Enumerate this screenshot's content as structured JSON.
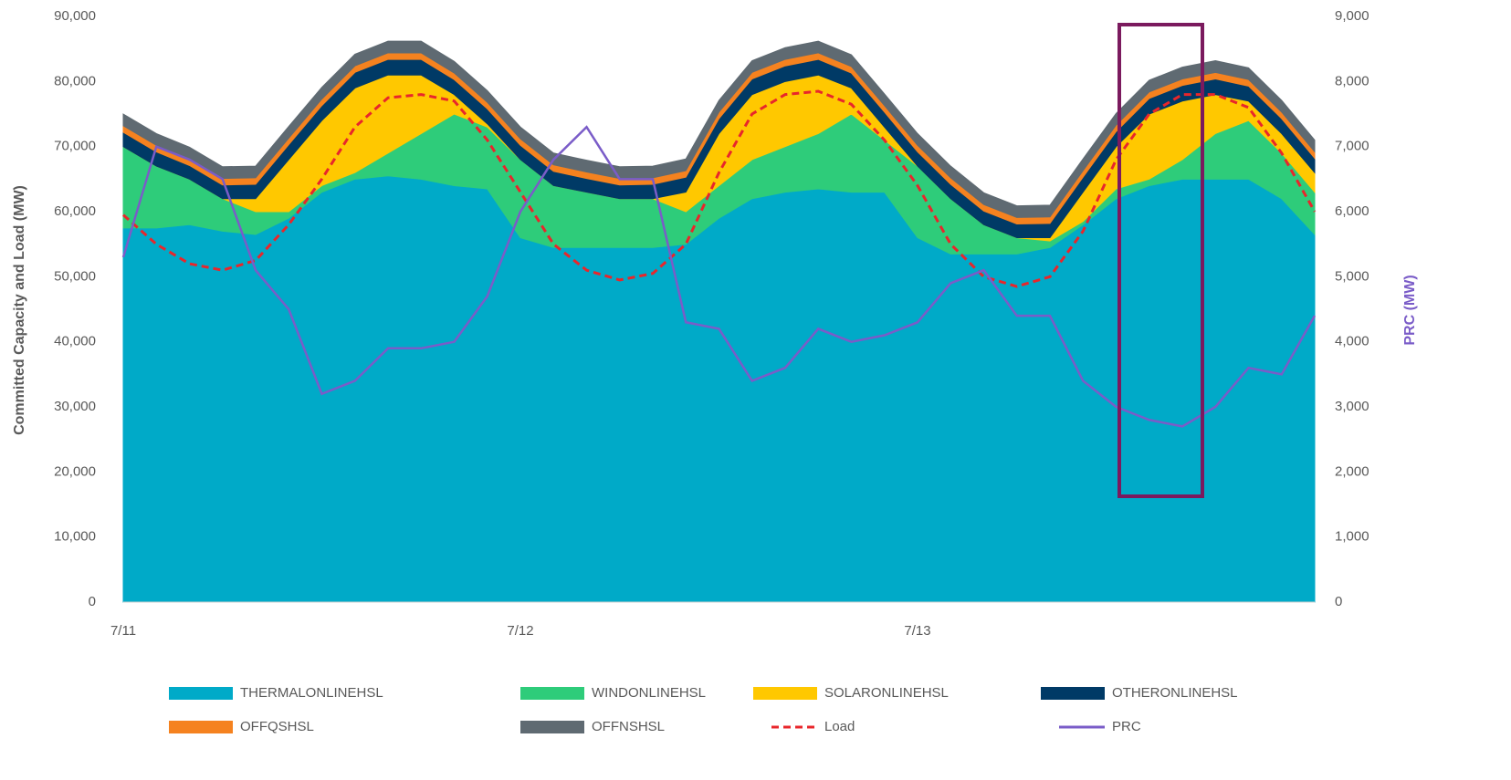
{
  "chart_data": {
    "type": "stacked-area",
    "y_label": "Committed Capacity and Load (MW)",
    "y2_label": "PRC (MW)",
    "categories": [
      "7/11",
      null,
      null,
      null,
      null,
      null,
      null,
      null,
      null,
      null,
      null,
      null,
      "7/12",
      null,
      null,
      null,
      null,
      null,
      null,
      null,
      null,
      null,
      null,
      null,
      "7/13",
      null,
      null,
      null,
      null,
      null,
      null,
      null,
      null,
      null,
      null,
      null,
      null
    ],
    "ylim": [
      0,
      90000
    ],
    "yticks": [
      0,
      {
        "value": 10000,
        "label": "10,000"
      },
      {
        "value": 20000,
        "label": "20,000"
      },
      {
        "value": 30000,
        "label": "30,000"
      },
      {
        "value": 40000,
        "label": "40,000"
      },
      {
        "value": 50000,
        "label": "50,000"
      },
      {
        "value": 60000,
        "label": "60,000"
      },
      {
        "value": 70000,
        "label": "70,000"
      },
      {
        "value": 80000,
        "label": "80,000"
      },
      {
        "value": 90000,
        "label": "90,000"
      }
    ],
    "y2lim": [
      0,
      9000
    ],
    "y2ticks": [
      0,
      {
        "value": 1000,
        "label": "1,000"
      },
      {
        "value": 2000,
        "label": "2,000"
      },
      {
        "value": 3000,
        "label": "3,000"
      },
      {
        "value": 4000,
        "label": "4,000"
      },
      {
        "value": 5000,
        "label": "5,000"
      },
      {
        "value": 6000,
        "label": "6,000"
      },
      {
        "value": 7000,
        "label": "7,000"
      },
      {
        "value": 8000,
        "label": "8,000"
      },
      {
        "value": 9000,
        "label": "9,000"
      }
    ],
    "series": [
      {
        "name": "THERMALONLINEHSL",
        "kind": "area",
        "color": "#00aac8",
        "values": [
          57500,
          57500,
          58000,
          57000,
          56500,
          59000,
          63000,
          65000,
          65500,
          65000,
          64000,
          63500,
          56000,
          54500,
          54500,
          54500,
          54500,
          55000,
          59000,
          62000,
          63000,
          63500,
          63000,
          63000,
          56000,
          53500,
          53500,
          53500,
          54500,
          58000,
          62000,
          64000,
          65000,
          65000,
          65000,
          62000,
          56500
        ]
      },
      {
        "name": "WINDONLINEHSL",
        "kind": "area",
        "color": "#2ecc7a",
        "values": [
          12500,
          9500,
          7000,
          5000,
          3500,
          1000,
          1000,
          1000,
          3500,
          7000,
          11000,
          9500,
          12000,
          9500,
          8500,
          7500,
          7500,
          5000,
          5000,
          6000,
          7000,
          8500,
          12000,
          8000,
          11000,
          8500,
          4500,
          2500,
          1000,
          500,
          1500,
          1000,
          3000,
          7000,
          9000,
          7000,
          6500
        ]
      },
      {
        "name": "SOLARONLINEHSL",
        "kind": "area",
        "color": "#ffc800",
        "values": [
          0,
          0,
          0,
          0,
          2000,
          8000,
          10000,
          13000,
          12000,
          9000,
          3000,
          500,
          0,
          0,
          0,
          0,
          0,
          3000,
          8000,
          10000,
          10000,
          9000,
          4000,
          2000,
          0,
          0,
          0,
          0,
          500,
          4500,
          6500,
          10000,
          9000,
          6000,
          3000,
          3000,
          3000
        ]
      },
      {
        "name": "OTHERONLINEHSL",
        "kind": "area",
        "color": "#003a66",
        "values": [
          2200,
          2200,
          2100,
          2100,
          2200,
          2300,
          2300,
          2400,
          2400,
          2400,
          2300,
          2300,
          2200,
          2200,
          2100,
          2100,
          2200,
          2300,
          2300,
          2400,
          2400,
          2400,
          2300,
          2300,
          2200,
          2200,
          2100,
          2100,
          2200,
          2300,
          2300,
          2400,
          2400,
          2400,
          2300,
          2300,
          2200
        ]
      },
      {
        "name": "OFFQSHSL",
        "kind": "area",
        "color": "#f5821f",
        "values": [
          1000,
          1000,
          1000,
          1000,
          1000,
          1000,
          1000,
          1000,
          1000,
          1000,
          1000,
          1000,
          1000,
          1000,
          1000,
          1000,
          1000,
          1000,
          1000,
          1000,
          1000,
          1000,
          1000,
          1000,
          1000,
          1000,
          1000,
          1000,
          1000,
          1000,
          1000,
          1000,
          1000,
          1000,
          1000,
          1000,
          1000
        ]
      },
      {
        "name": "OFFNSHSL",
        "kind": "area",
        "color": "#5f6a72",
        "values": [
          1800,
          1800,
          1800,
          1800,
          1800,
          1800,
          1800,
          1800,
          1800,
          1800,
          1800,
          1800,
          1800,
          1800,
          1800,
          1800,
          1800,
          1800,
          1800,
          1800,
          1800,
          1800,
          1800,
          1800,
          1800,
          1800,
          1800,
          1800,
          1800,
          1800,
          1800,
          1800,
          1800,
          1800,
          1800,
          1800,
          1800
        ]
      },
      {
        "name": "Load",
        "kind": "line",
        "dashed": true,
        "color": "#e8262b",
        "values": [
          59500,
          55000,
          52000,
          51000,
          52500,
          58000,
          65000,
          73000,
          77500,
          78000,
          77000,
          71000,
          63000,
          55000,
          51000,
          49500,
          50500,
          55000,
          66000,
          75000,
          78000,
          78500,
          76500,
          71000,
          64000,
          55000,
          50000,
          48500,
          50000,
          57000,
          68000,
          75000,
          78000,
          78000,
          76000,
          69000,
          60000
        ]
      },
      {
        "name": "PRC",
        "kind": "line",
        "axis": "y2",
        "color": "#7a5cc8",
        "values": [
          5300,
          7000,
          6800,
          6500,
          5100,
          4500,
          3200,
          3400,
          3900,
          3900,
          4000,
          4700,
          6000,
          6800,
          7300,
          6500,
          6500,
          4300,
          4200,
          3400,
          3600,
          4200,
          4000,
          4100,
          4300,
          4900,
          5100,
          4400,
          4400,
          3400,
          3000,
          2800,
          2700,
          3000,
          3600,
          3500,
          4400
        ]
      }
    ]
  }
}
